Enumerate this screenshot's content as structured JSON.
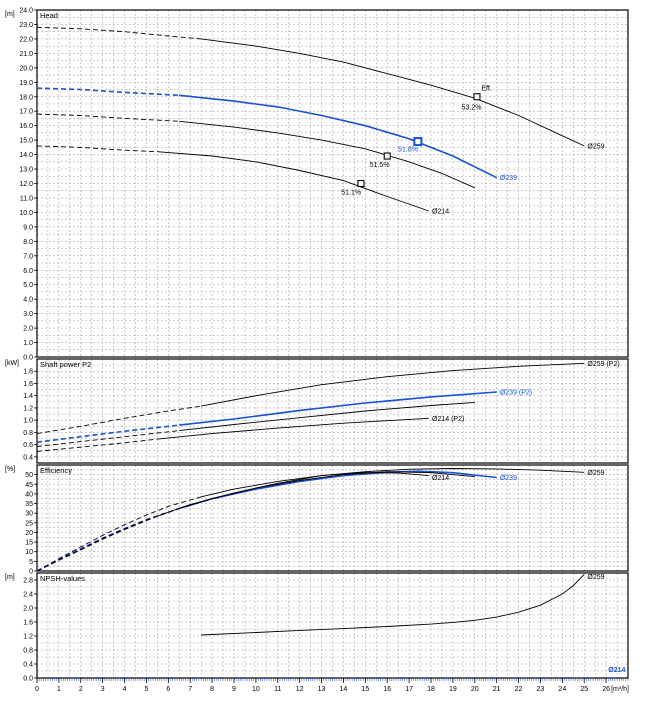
{
  "header_text": "",
  "colors": {
    "black": "#000000",
    "blue": "#1a4fd6",
    "grid": "#999999",
    "title": "#d40000"
  },
  "x_axis": {
    "unit": "[m³/h]",
    "ticks": [
      "0",
      "1",
      "2",
      "3",
      "4",
      "5",
      "6",
      "7",
      "8",
      "9",
      "10",
      "11",
      "12",
      "13",
      "14",
      "15",
      "16",
      "17",
      "18",
      "19",
      "20",
      "21",
      "22",
      "23",
      "24",
      "25",
      "26"
    ]
  },
  "chart_data": [
    {
      "type": "line",
      "panel": "head",
      "title": "Head",
      "unit": "[m]",
      "xlim": [
        0,
        27
      ],
      "ylim": [
        0,
        24
      ],
      "y_ticks": [
        "0.0",
        "1.0",
        "2.0",
        "3.0",
        "4.0",
        "5.0",
        "6.0",
        "7.0",
        "8.0",
        "9.0",
        "10.0",
        "11.0",
        "12.0",
        "13.0",
        "14.0",
        "15.0",
        "16.0",
        "17.0",
        "18.0",
        "19.0",
        "20.0",
        "21.0",
        "22.0",
        "23.0",
        "24.0"
      ],
      "series": [
        {
          "name": "Ø259",
          "color": "black",
          "dashed_until": 7.5,
          "x": [
            0,
            2,
            4,
            6,
            7.5,
            10,
            12,
            14,
            16,
            18,
            20,
            22,
            24,
            25
          ],
          "y": [
            22.8,
            22.7,
            22.5,
            22.2,
            22.0,
            21.5,
            21.0,
            20.4,
            19.6,
            18.8,
            17.9,
            16.7,
            15.3,
            14.6
          ],
          "label": "Ø259",
          "label_x": 25.1,
          "label_y": 14.6
        },
        {
          "name": "Ø239",
          "color": "blue",
          "dashed_until": 6.5,
          "x": [
            0,
            2,
            4,
            6.5,
            9,
            11,
            13,
            15,
            17,
            19,
            21
          ],
          "y": [
            18.6,
            18.5,
            18.3,
            18.1,
            17.7,
            17.3,
            16.7,
            16.0,
            15.1,
            13.9,
            12.4
          ],
          "label": "Ø239",
          "label_x": 21.1,
          "label_y": 12.4
        },
        {
          "name": "curve-mid",
          "color": "black",
          "dashed_until": 6.5,
          "x": [
            0,
            2,
            4,
            6.5,
            9,
            11,
            13,
            15,
            17,
            18.5,
            20
          ],
          "y": [
            16.8,
            16.7,
            16.5,
            16.3,
            15.9,
            15.5,
            15.0,
            14.4,
            13.5,
            12.7,
            11.7
          ]
        },
        {
          "name": "Ø214",
          "color": "black",
          "dashed_until": 5.5,
          "x": [
            0,
            2,
            4,
            5.5,
            8,
            10,
            12,
            14,
            16,
            17.9
          ],
          "y": [
            14.6,
            14.5,
            14.3,
            14.2,
            13.9,
            13.5,
            12.9,
            12.2,
            11.1,
            10.1
          ],
          "label": "Ø214",
          "label_x": 18.0,
          "label_y": 10.1
        }
      ],
      "markers": [
        {
          "x": 20.1,
          "y": 18.0,
          "color": "black",
          "label": "53.2%",
          "lx": 19.4,
          "ly": 17.3,
          "bold": false
        },
        {
          "x": 17.4,
          "y": 14.9,
          "color": "blue",
          "label": "51.8%",
          "lx": 16.5,
          "ly": 14.4,
          "bold": true
        },
        {
          "x": 16.0,
          "y": 13.9,
          "color": "black",
          "label": "51.5%",
          "lx": 15.2,
          "ly": 13.3,
          "bold": false
        },
        {
          "x": 14.8,
          "y": 12.0,
          "color": "black",
          "label": "51.1%",
          "lx": 13.9,
          "ly": 11.4,
          "bold": false
        }
      ],
      "annotations": [
        {
          "text": "Eff.",
          "x": 20.3,
          "y": 18.6
        }
      ]
    },
    {
      "type": "line",
      "panel": "power",
      "title": "Shaft power P2",
      "unit": "[kW]",
      "xlim": [
        0,
        27
      ],
      "ylim": [
        0.3,
        2.0
      ],
      "y_ticks": [
        "0.4",
        "0.6",
        "0.8",
        "1.0",
        "1.2",
        "1.4",
        "1.6",
        "1.8"
      ],
      "series": [
        {
          "name": "Ø259 (P2)",
          "color": "black",
          "dashed_until": 7.5,
          "x": [
            0,
            2,
            4,
            6,
            7.5,
            10,
            13,
            16,
            19,
            22,
            25
          ],
          "y": [
            0.78,
            0.9,
            1.03,
            1.15,
            1.23,
            1.4,
            1.58,
            1.71,
            1.81,
            1.88,
            1.93
          ],
          "label": "Ø259 (P2)",
          "label_x": 25.1,
          "label_y": 1.93
        },
        {
          "name": "Ø239 (P2)",
          "color": "blue",
          "dashed_until": 6.5,
          "x": [
            0,
            2,
            4,
            6.5,
            9,
            12,
            15,
            18,
            21
          ],
          "y": [
            0.64,
            0.73,
            0.82,
            0.92,
            1.02,
            1.16,
            1.28,
            1.38,
            1.46
          ],
          "label": "Ø239 (P2)",
          "label_x": 21.1,
          "label_y": 1.46
        },
        {
          "name": "curve-mid-p2",
          "color": "black",
          "dashed_until": 6.5,
          "x": [
            0,
            2,
            4,
            6.5,
            9,
            12,
            15,
            18,
            20
          ],
          "y": [
            0.57,
            0.65,
            0.73,
            0.83,
            0.93,
            1.04,
            1.15,
            1.24,
            1.29
          ]
        },
        {
          "name": "Ø214 (P2)",
          "color": "black",
          "dashed_until": 5.5,
          "x": [
            0,
            2,
            4,
            5.5,
            8,
            11,
            14,
            17.9
          ],
          "y": [
            0.49,
            0.56,
            0.63,
            0.69,
            0.78,
            0.87,
            0.95,
            1.03
          ],
          "label": "Ø214 (P2)",
          "label_x": 18.0,
          "label_y": 1.03
        }
      ]
    },
    {
      "type": "line",
      "panel": "efficiency",
      "title": "Efficiency",
      "unit": "[%]",
      "xlim": [
        0,
        27
      ],
      "ylim": [
        0,
        55
      ],
      "y_ticks": [
        "0",
        "5",
        "10",
        "15",
        "20",
        "25",
        "30",
        "35",
        "40",
        "45",
        "50"
      ],
      "series": [
        {
          "name": "Ø259",
          "color": "black",
          "dashed_until": 7.5,
          "x": [
            0,
            1,
            2,
            3,
            4,
            5,
            6,
            7.5,
            9,
            11,
            13,
            15,
            17,
            19,
            21,
            23,
            25
          ],
          "y": [
            0,
            6.5,
            12.5,
            18.5,
            24,
            29,
            33.5,
            38.5,
            42.5,
            46.5,
            49.5,
            51.5,
            52.8,
            53.2,
            53.0,
            52.3,
            51.2
          ],
          "label": "Ø259",
          "label_x": 25.1,
          "label_y": 51.2
        },
        {
          "name": "Ø239",
          "color": "blue",
          "dashed_until": 6.5,
          "x": [
            0,
            1,
            2,
            3,
            4,
            5,
            6.5,
            8,
            10,
            12,
            14,
            16,
            17.4,
            19,
            21
          ],
          "y": [
            0,
            6,
            11.5,
            17,
            22,
            26.5,
            32.5,
            37.5,
            42.5,
            46.5,
            49.5,
            51.2,
            51.8,
            51.0,
            48.5
          ],
          "label": "Ø239",
          "label_x": 21.1,
          "label_y": 48.5
        },
        {
          "name": "curve-mid-eff",
          "color": "black",
          "dashed_until": 6.5,
          "x": [
            0,
            1,
            2,
            3,
            4,
            5,
            6.5,
            8,
            10,
            12,
            14,
            16,
            18,
            20
          ],
          "y": [
            0,
            5.8,
            11.2,
            16.8,
            21.8,
            26.5,
            32.5,
            37.5,
            43,
            47,
            50,
            51.5,
            51.0,
            49.0
          ]
        },
        {
          "name": "Ø214",
          "color": "black",
          "dashed_until": 5.5,
          "x": [
            0,
            1,
            2,
            3,
            4,
            5.5,
            7,
            9,
            11,
            13,
            14.8,
            16.5,
            17.9
          ],
          "y": [
            0,
            5.5,
            11,
            16.5,
            21.5,
            28.5,
            34.5,
            40.5,
            45.5,
            49.5,
            51.1,
            50.8,
            49.5
          ],
          "label": "Ø214",
          "label_x": 18.0,
          "label_y": 48.5
        }
      ]
    },
    {
      "type": "line",
      "panel": "npsh",
      "title": "NPSH-values",
      "unit": "[m]",
      "xlim": [
        0,
        27
      ],
      "ylim": [
        0,
        3.0
      ],
      "y_ticks": [
        "0.0",
        "0.4",
        "0.8",
        "1.2",
        "1.6",
        "2.0",
        "2.4",
        "2.8"
      ],
      "series": [
        {
          "name": "Ø259",
          "color": "black",
          "dashed_until": null,
          "x": [
            7.5,
            10,
            12,
            14,
            16,
            18,
            19,
            20,
            21,
            22,
            23,
            24,
            24.5,
            25
          ],
          "y": [
            1.23,
            1.3,
            1.36,
            1.41,
            1.47,
            1.54,
            1.59,
            1.65,
            1.74,
            1.88,
            2.08,
            2.4,
            2.64,
            2.96
          ],
          "label": "Ø259",
          "label_x": 25.1,
          "label_y": 2.9
        }
      ],
      "annotations": [
        {
          "text": "Ø214",
          "x": 26.1,
          "y": 0.25,
          "color": "blue"
        }
      ]
    }
  ]
}
